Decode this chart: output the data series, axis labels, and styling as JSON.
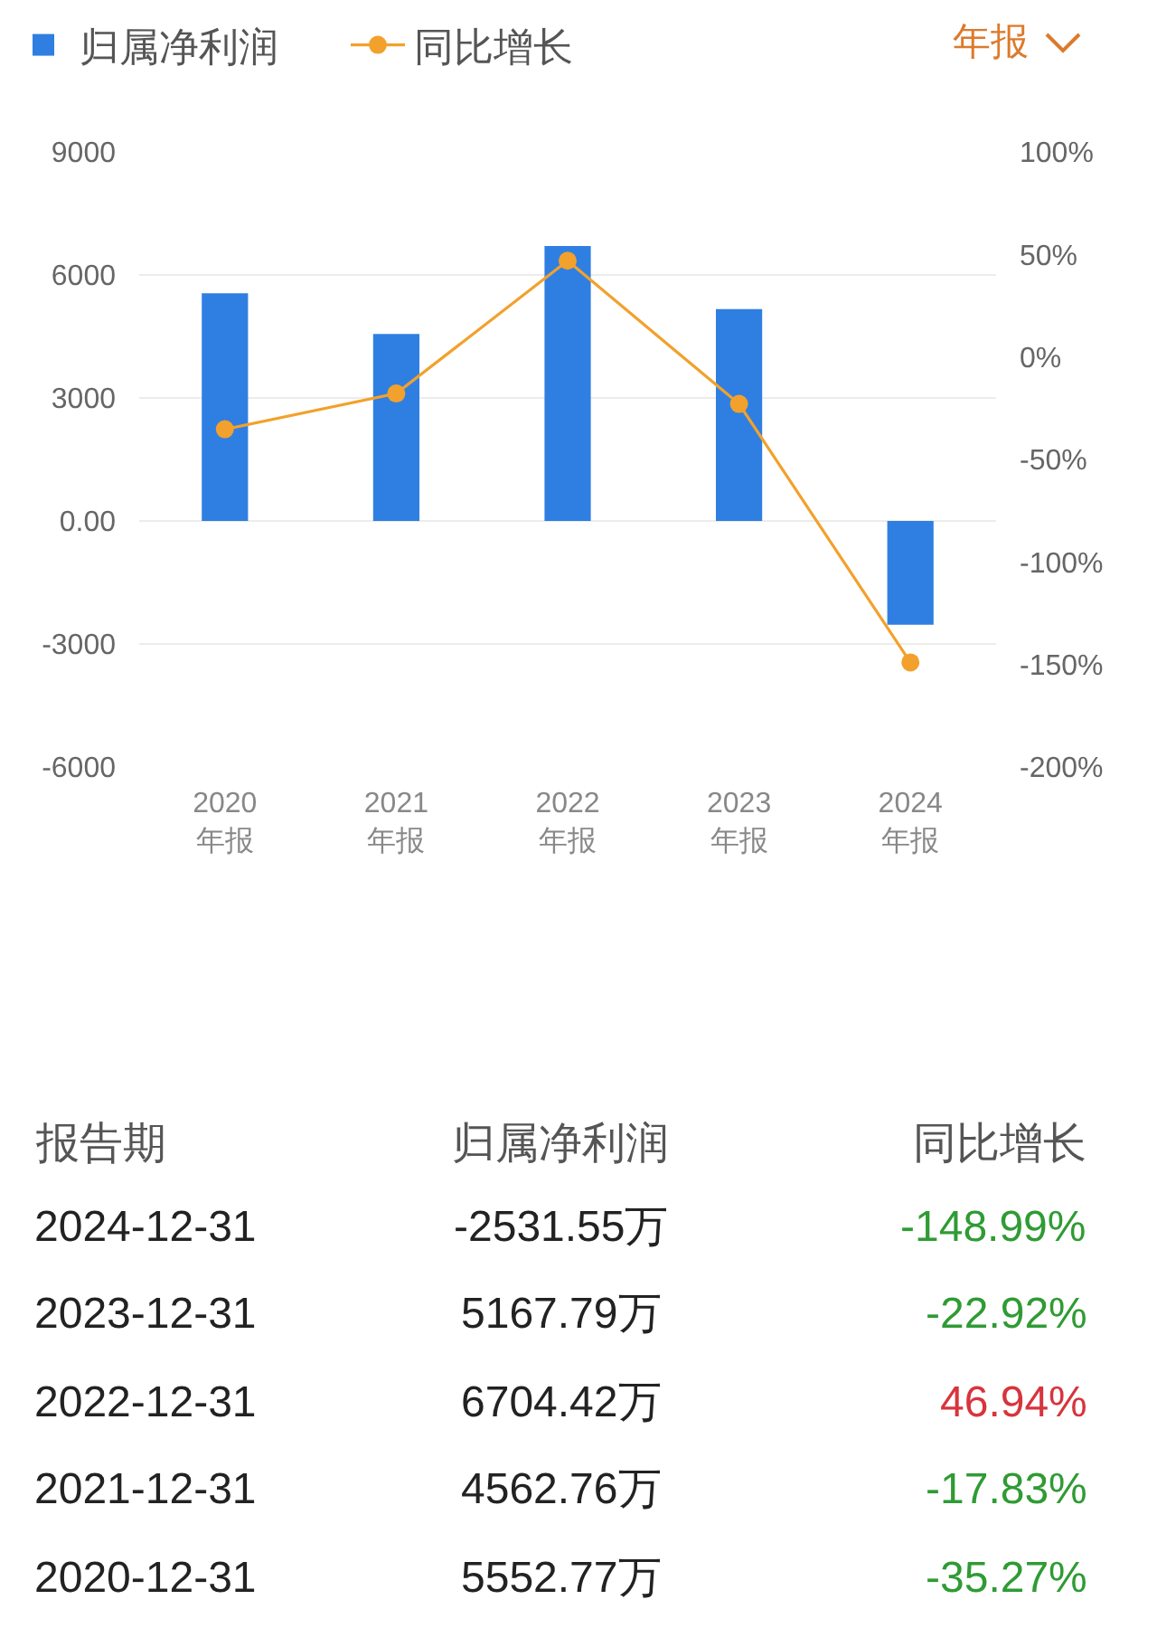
{
  "chart_data": {
    "type": "bar",
    "categories": [
      "2020\n年报",
      "2021\n年报",
      "2022\n年报",
      "2023\n年报",
      "2024\n年报"
    ],
    "series": [
      {
        "name": "归属净利润",
        "color": "#2f7fe2",
        "values": [
          5552.77,
          4562.76,
          6704.42,
          5167.79,
          -2531.55
        ]
      },
      {
        "name": "同比增长",
        "type": "line",
        "axis": "y2",
        "color": "#f2a12c",
        "marker": "circle",
        "values": [
          -35.27,
          -17.83,
          46.94,
          -22.92,
          -148.99
        ]
      }
    ],
    "ylim": [
      -6000,
      9000
    ],
    "yticks": [
      -6000,
      -3000,
      {
        "value": 0,
        "label": "0.00"
      },
      3000,
      6000,
      9000
    ],
    "y2lim": [
      -200,
      100
    ],
    "y2ticks": [
      {
        "value": -200,
        "label": "-200%"
      },
      {
        "value": -150,
        "label": "-150%"
      },
      {
        "value": -100,
        "label": "-100%"
      },
      {
        "value": -50,
        "label": "-50%"
      },
      {
        "value": 0,
        "label": "0%"
      },
      {
        "value": 50,
        "label": "50%"
      },
      {
        "value": 100,
        "label": "100%"
      }
    ],
    "grid": "y",
    "legend": "top left",
    "annotations": [
      "年报",
      "报告期",
      "归属净利润",
      "同比增长",
      "2024-12-31",
      "-2531.55万",
      "-148.99%",
      "2023-12-31",
      "5167.79万",
      "-22.92%",
      "2022-12-31",
      "6704.42万",
      "46.94%",
      "2021-12-31",
      "4562.76万",
      "-17.83%",
      "2020-12-31",
      "5552.77万",
      "-35.27%"
    ]
  }
}
